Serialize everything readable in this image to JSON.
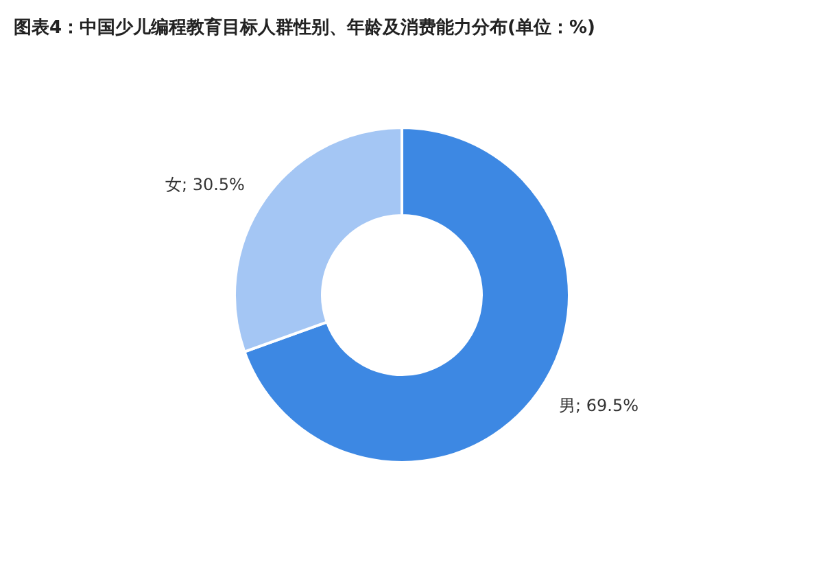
{
  "chart_data": {
    "type": "donut",
    "title": "图表4：中国少儿编程教育目标人群性别、年龄及消费能力分布(单位：%)",
    "categories": [
      "男",
      "女"
    ],
    "values": [
      69.5,
      30.5
    ],
    "colors": [
      "#3d88e3",
      "#a4c6f4"
    ],
    "value_labels": [
      "; 69.5%",
      "; 30.5%"
    ]
  }
}
